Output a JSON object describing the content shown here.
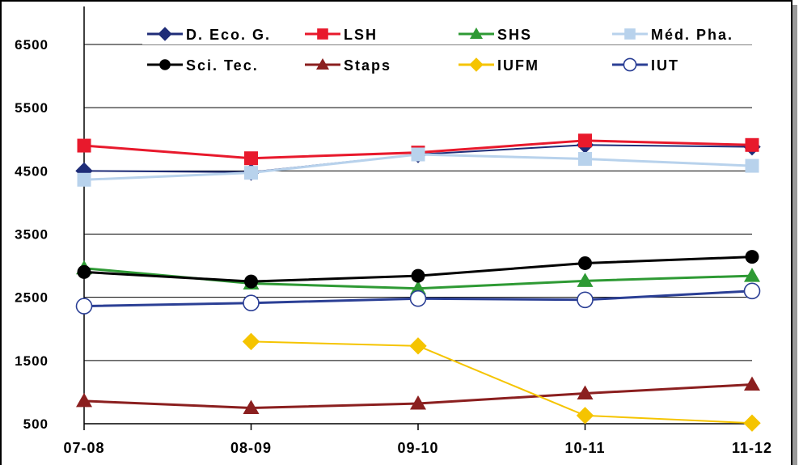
{
  "chart_data": {
    "type": "line",
    "categories": [
      "07-08",
      "08-09",
      "09-10",
      "10-11",
      "11-12"
    ],
    "ylim": [
      500,
      6500
    ],
    "yticks": [
      "500",
      "1500",
      "2500",
      "3500",
      "4500",
      "5500",
      "6500"
    ],
    "grid": "horizontal",
    "legend_position": "top",
    "series": [
      {
        "name": "D. Eco. G.",
        "color": "#1f2d78",
        "marker": "diamond",
        "lineWidth": 2,
        "values": [
          4500,
          4480,
          4760,
          4910,
          4880
        ]
      },
      {
        "name": "LSH",
        "color": "#e8192c",
        "marker": "square",
        "lineWidth": 3,
        "values": [
          4900,
          4700,
          4790,
          4980,
          4910
        ]
      },
      {
        "name": "SHS",
        "color": "#2e9a34",
        "marker": "triangle",
        "lineWidth": 3,
        "values": [
          2960,
          2720,
          2640,
          2760,
          2840
        ]
      },
      {
        "name": "Méd. Pha.",
        "color": "#b8d2ec",
        "marker": "square",
        "lineWidth": 3,
        "values": [
          4360,
          4470,
          4760,
          4690,
          4580
        ]
      },
      {
        "name": "Sci. Tec.",
        "color": "#000000",
        "marker": "circle",
        "lineWidth": 3,
        "values": [
          2900,
          2750,
          2840,
          3040,
          3140
        ]
      },
      {
        "name": "Staps",
        "color": "#8b1f1f",
        "marker": "triangle",
        "lineWidth": 3,
        "values": [
          860,
          750,
          820,
          980,
          1120
        ]
      },
      {
        "name": "IUFM",
        "color": "#f5c400",
        "marker": "diamond",
        "lineWidth": 2,
        "values": [
          null,
          1800,
          1730,
          630,
          510
        ]
      },
      {
        "name": "IUT",
        "color": "#2b3f95",
        "marker": "circle-open",
        "lineWidth": 3,
        "values": [
          2360,
          2410,
          2480,
          2460,
          2600
        ]
      }
    ]
  }
}
